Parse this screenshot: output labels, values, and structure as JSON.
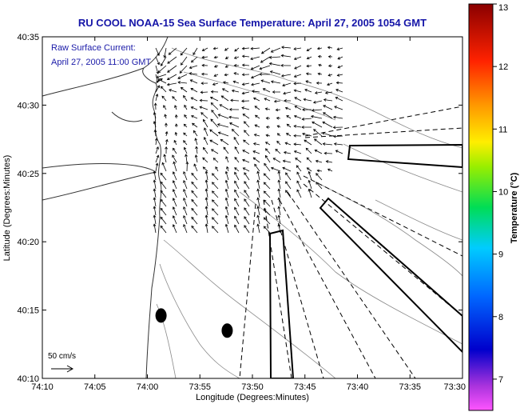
{
  "chart_data": {
    "type": "vector-map",
    "title": "RU COOL  NOAA-15  Sea Surface Temperature:  April 27, 2005 1054 GMT",
    "annotation_lines": [
      "Raw Surface Current:",
      "April 27, 2005 11:00 GMT"
    ],
    "xlabel": "Longitude (Degrees:Minutes)",
    "ylabel": "Latitude (Degrees:Minutes)",
    "x_ticks": [
      "74:10",
      "74:05",
      "74:00",
      "73:55",
      "73:50",
      "73:45",
      "73:40",
      "73:35",
      "73:30"
    ],
    "y_ticks": [
      "40:35",
      "40:30",
      "40:25",
      "40:20",
      "40:15",
      "40:10"
    ],
    "xlim_west_minutes": [
      70,
      30
    ],
    "ylim_minutes": [
      10,
      35
    ],
    "scale_label": "50 cm/s",
    "colorbar": {
      "label": "Temperature (°C)",
      "range": [
        6.5,
        13
      ],
      "ticks": [
        "7",
        "8",
        "9",
        "10",
        "11",
        "12",
        "13"
      ]
    },
    "markers": [
      {
        "lon_w_min": 58.7,
        "lat_min": 14.6
      },
      {
        "lon_w_min": 52.4,
        "lat_min": 13.5
      }
    ]
  }
}
